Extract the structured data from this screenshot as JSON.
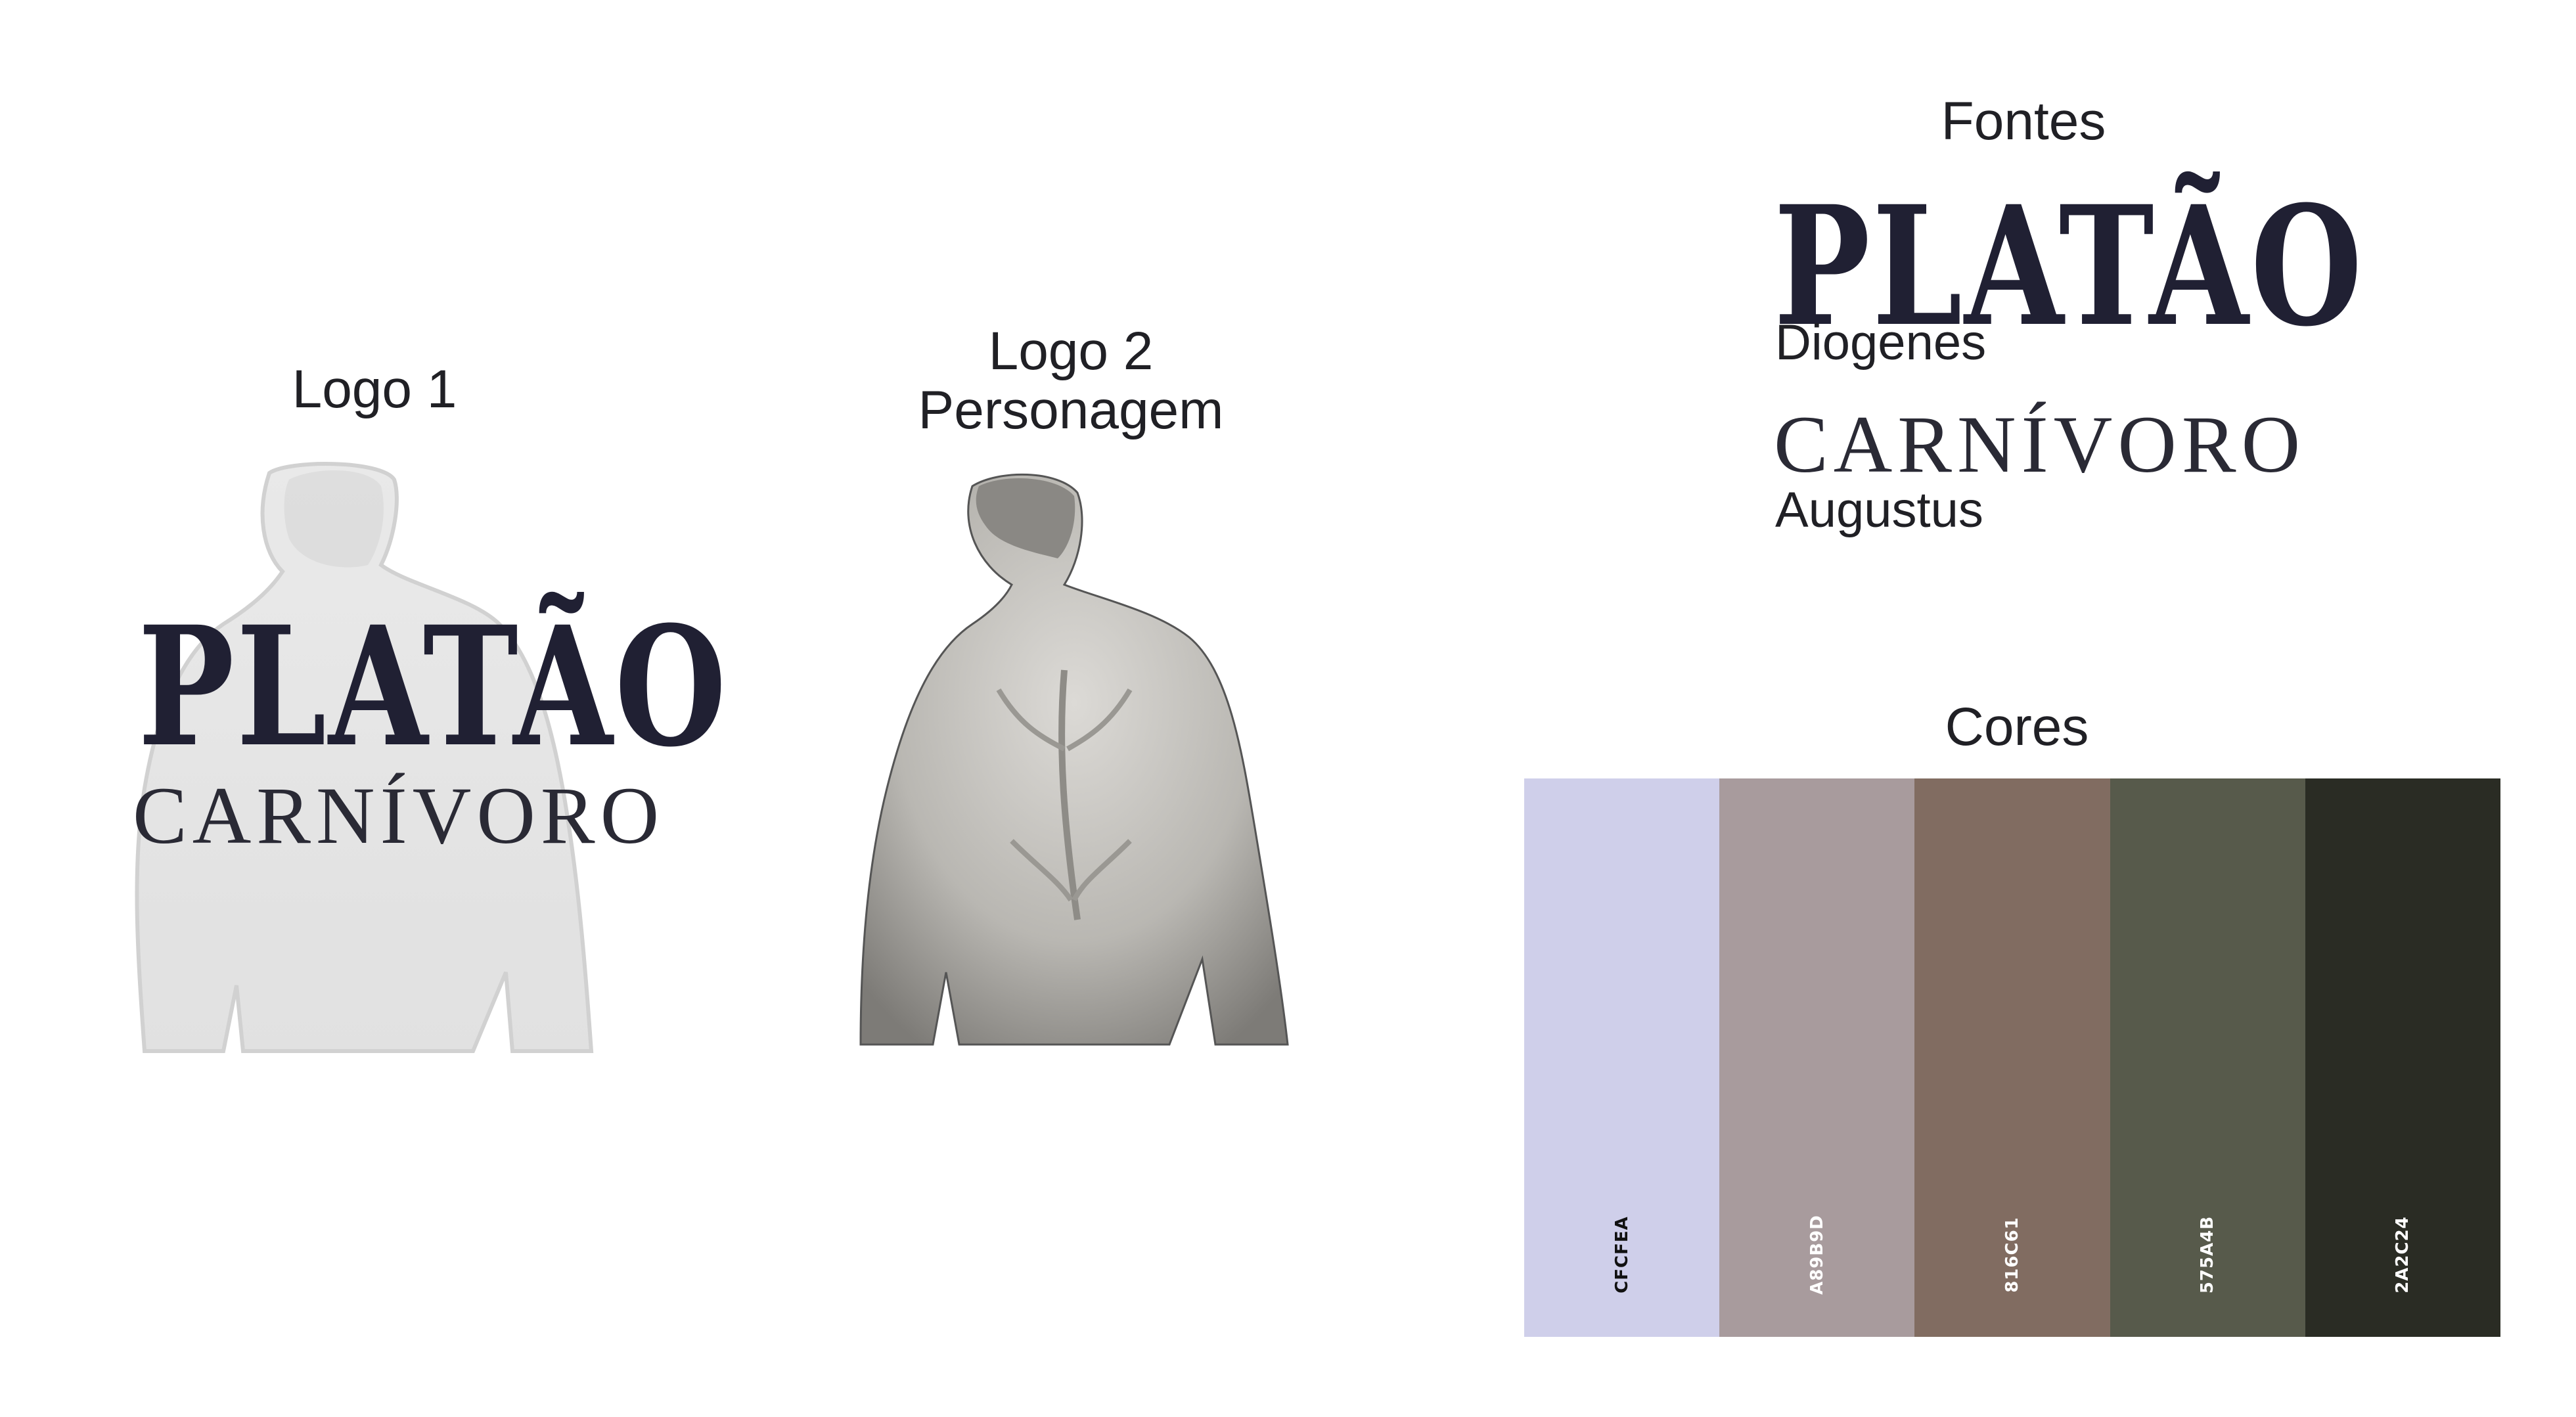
{
  "logo1": {
    "title": "Logo 1",
    "wordmark": "PLATÃO",
    "tagline": "CARNÍVORO"
  },
  "logo2": {
    "title_line1": "Logo 2",
    "title_line2": "Personagem"
  },
  "fonts": {
    "title": "Fontes",
    "display_sample": "PLATÃO",
    "display_name": "Diogenes",
    "text_sample": "CARNÍVORO",
    "text_name": "Augustus"
  },
  "colors": {
    "title": "Cores",
    "swatches": [
      {
        "code": "CFCFEA",
        "hex": "#CFCFEA",
        "text": "#111111"
      },
      {
        "code": "A89B9D",
        "hex": "#A89B9D",
        "text": "#ffffff"
      },
      {
        "code": "816C61",
        "hex": "#816C61",
        "text": "#ffffff"
      },
      {
        "code": "575A4B",
        "hex": "#575A4B",
        "text": "#ffffff"
      },
      {
        "code": "2A2C24",
        "hex": "#2A2C24",
        "text": "#ffffff"
      }
    ]
  }
}
